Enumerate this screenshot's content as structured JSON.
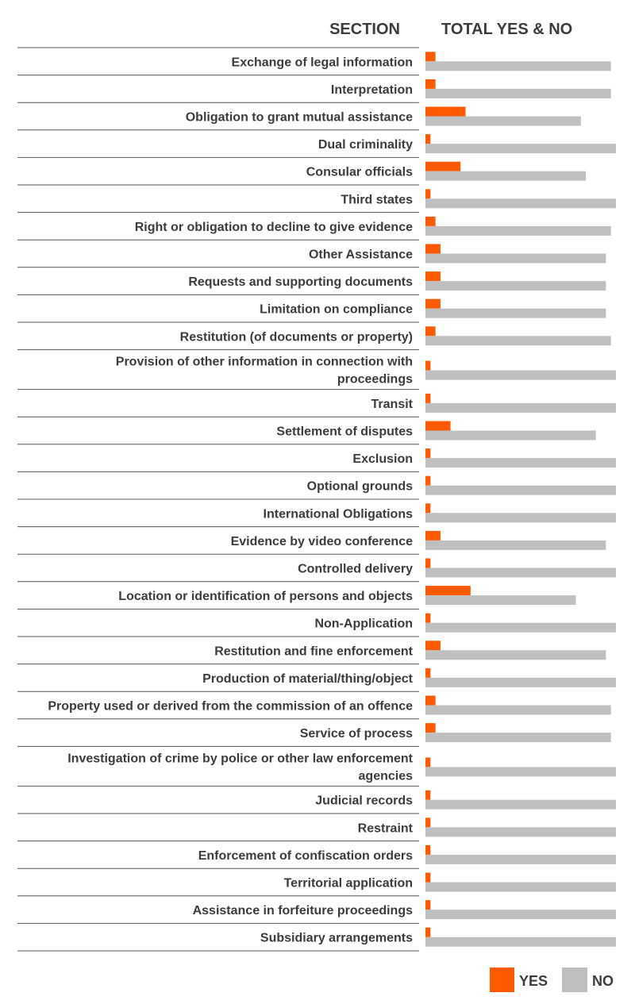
{
  "chart_data": {
    "type": "bar",
    "orientation": "horizontal",
    "header_section": "SECTION",
    "header_totals": "TOTAL YES & NO",
    "categories": [
      [
        "Exchange of legal information"
      ],
      [
        "Interpretation"
      ],
      [
        "Obligation to grant mutual assistance"
      ],
      [
        "Dual criminality"
      ],
      [
        "Consular officials"
      ],
      [
        "Third states"
      ],
      [
        "Right or obligation to decline to give evidence"
      ],
      [
        "Other Assistance"
      ],
      [
        "Requests and supporting documents"
      ],
      [
        "Limitation on compliance"
      ],
      [
        "Restitution (of documents or property)"
      ],
      [
        "Provision of other information in connection with",
        "proceedings"
      ],
      [
        "Transit"
      ],
      [
        "Settlement of disputes"
      ],
      [
        "Exclusion"
      ],
      [
        "Optional grounds"
      ],
      [
        "International Obligations"
      ],
      [
        "Evidence by video conference"
      ],
      [
        "Controlled delivery"
      ],
      [
        "Location or identification of persons and objects"
      ],
      [
        "Non-Application"
      ],
      [
        "Restitution and fine enforcement"
      ],
      [
        "Production of material/thing/object"
      ],
      [
        "Property used or derived from the commission of an offence"
      ],
      [
        "Service of process"
      ],
      [
        "Investigation of crime by police or other law enforcement",
        "agencies"
      ],
      [
        "Judicial records"
      ],
      [
        "Restraint"
      ],
      [
        "Enforcement of confiscation orders"
      ],
      [
        "Territorial application"
      ],
      [
        "Assistance in forfeiture proceedings"
      ],
      [
        "Subsidiary arrangements"
      ]
    ],
    "series": [
      {
        "name": "YES",
        "color": "#ff5a00",
        "values": [
          2,
          2,
          8,
          1,
          7,
          1,
          2,
          3,
          3,
          3,
          2,
          1,
          1,
          5,
          1,
          1,
          1,
          3,
          1,
          9,
          1,
          3,
          1,
          2,
          2,
          1,
          1,
          1,
          1,
          1,
          1,
          1
        ]
      },
      {
        "name": "NO",
        "color": "#bfbfbf",
        "values": [
          37,
          37,
          31,
          38,
          32,
          38,
          37,
          36,
          36,
          36,
          37,
          38,
          38,
          34,
          38,
          38,
          38,
          36,
          38,
          30,
          38,
          36,
          38,
          37,
          37,
          38,
          38,
          38,
          38,
          38,
          38,
          38
        ]
      }
    ],
    "xlim": [
      0,
      38
    ],
    "legend_position": "bottom-right",
    "grid": false
  }
}
